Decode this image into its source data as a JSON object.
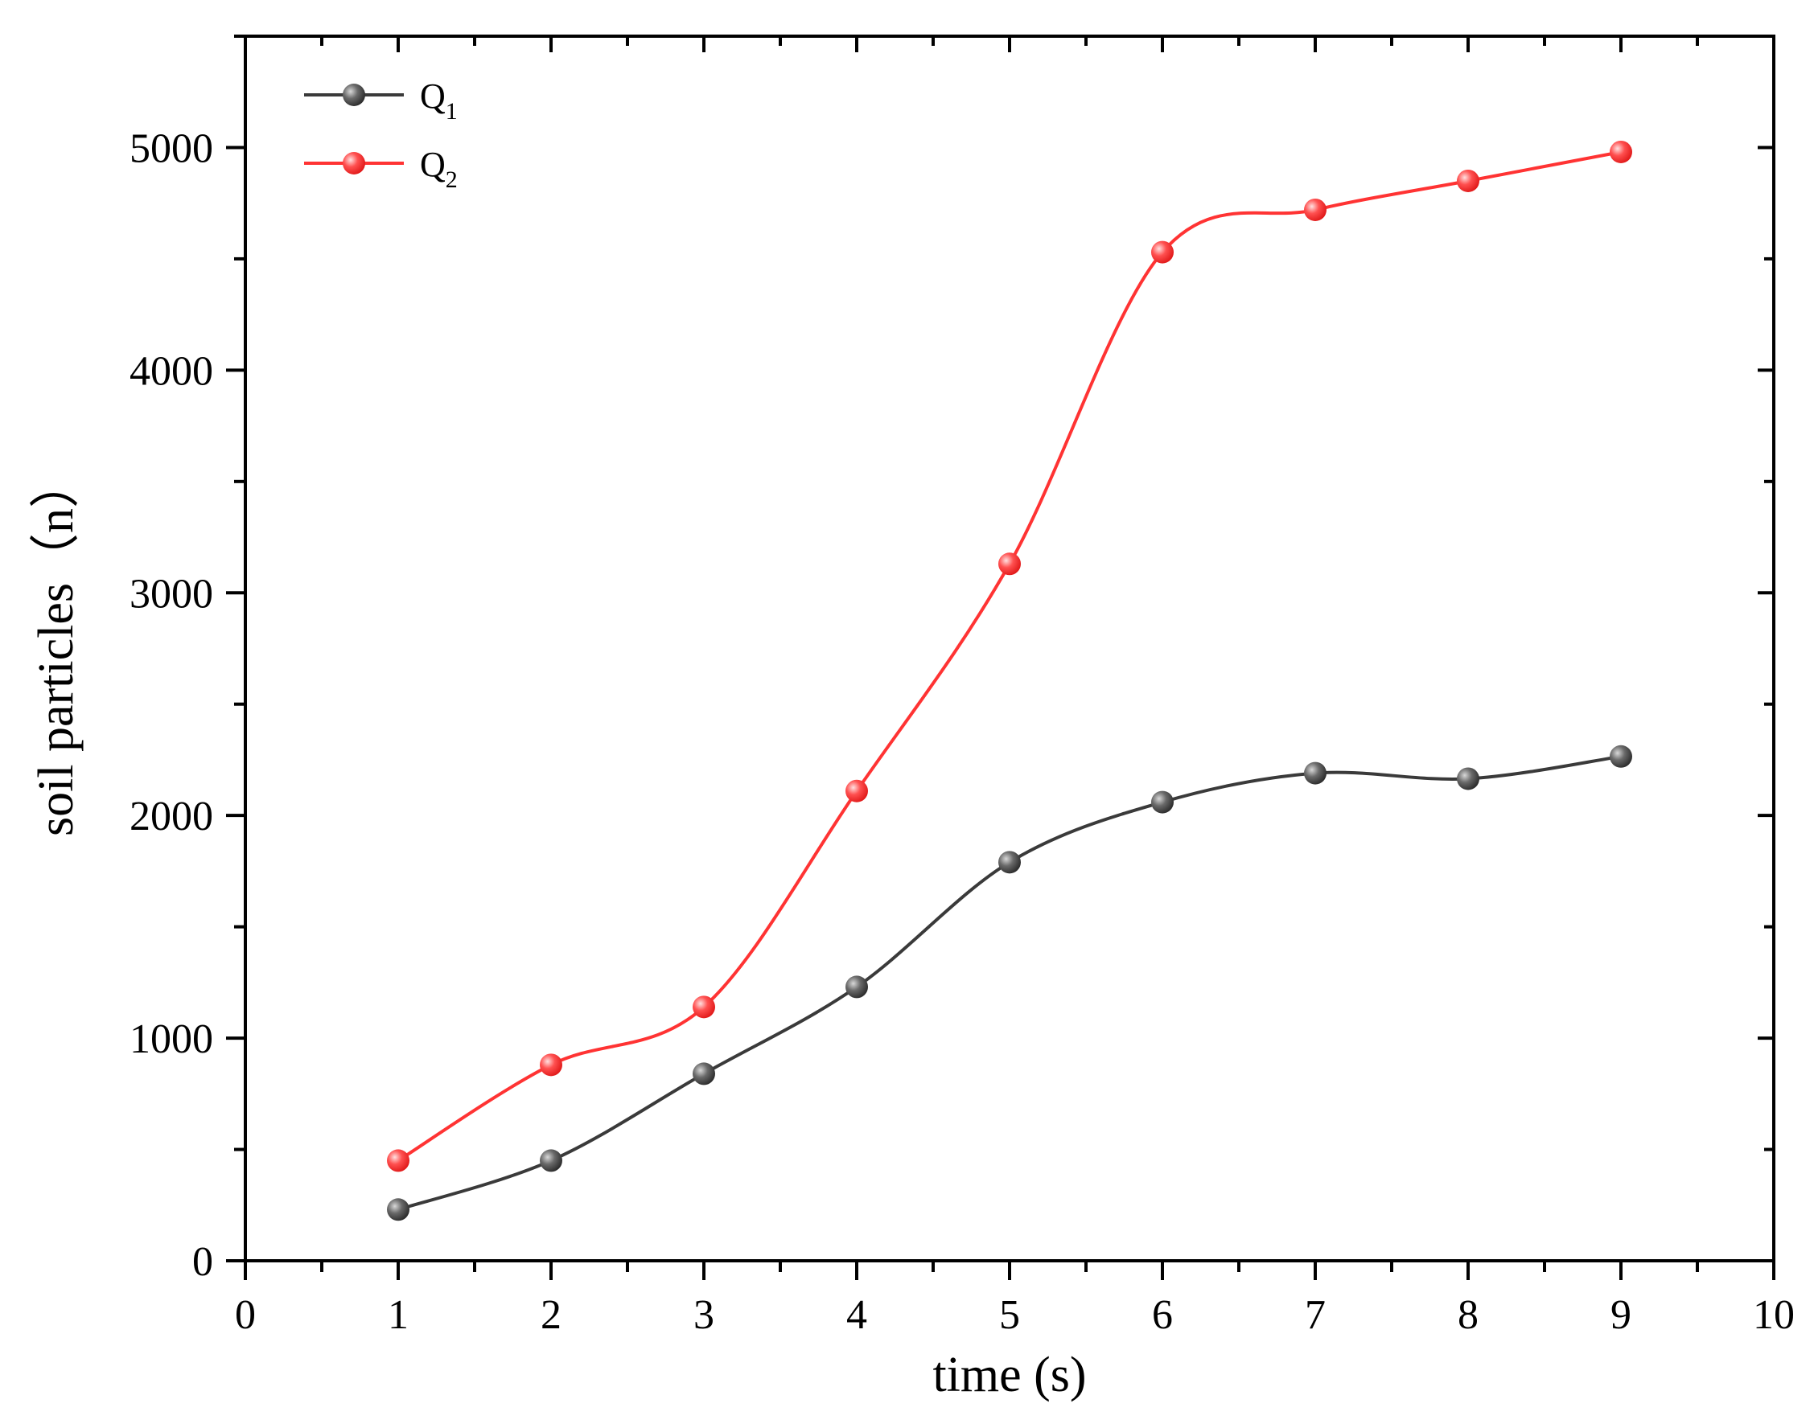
{
  "chart_data": {
    "type": "line",
    "title": "",
    "xlabel": "time (s)",
    "ylabel": "soil particles（n）",
    "xlim": [
      0,
      10
    ],
    "ylim": [
      0,
      5500
    ],
    "x_ticks": [
      0,
      1,
      2,
      3,
      4,
      5,
      6,
      7,
      8,
      9,
      10
    ],
    "x_tick_labels": [
      "0",
      "1",
      "2",
      "3",
      "4",
      "5",
      "6",
      "7",
      "8",
      "9",
      "10"
    ],
    "y_ticks": [
      0,
      1000,
      2000,
      3000,
      4000,
      5000
    ],
    "y_tick_labels": [
      "0",
      "1000",
      "2000",
      "3000",
      "4000",
      "5000"
    ],
    "x": [
      1,
      2,
      3,
      4,
      5,
      6,
      7,
      8,
      9
    ],
    "series": [
      {
        "name": "Q1",
        "label_base": "Q",
        "label_sub": "1",
        "color": "#3a3a3a",
        "values": [
          230,
          450,
          840,
          1230,
          1790,
          2060,
          2190,
          2165,
          2265
        ]
      },
      {
        "name": "Q2",
        "label_base": "Q",
        "label_sub": "2",
        "color": "#ff3333",
        "values": [
          450,
          880,
          1140,
          2110,
          3130,
          4530,
          4720,
          4850,
          4980
        ]
      }
    ],
    "legend_position": "top-left",
    "grid": false
  }
}
